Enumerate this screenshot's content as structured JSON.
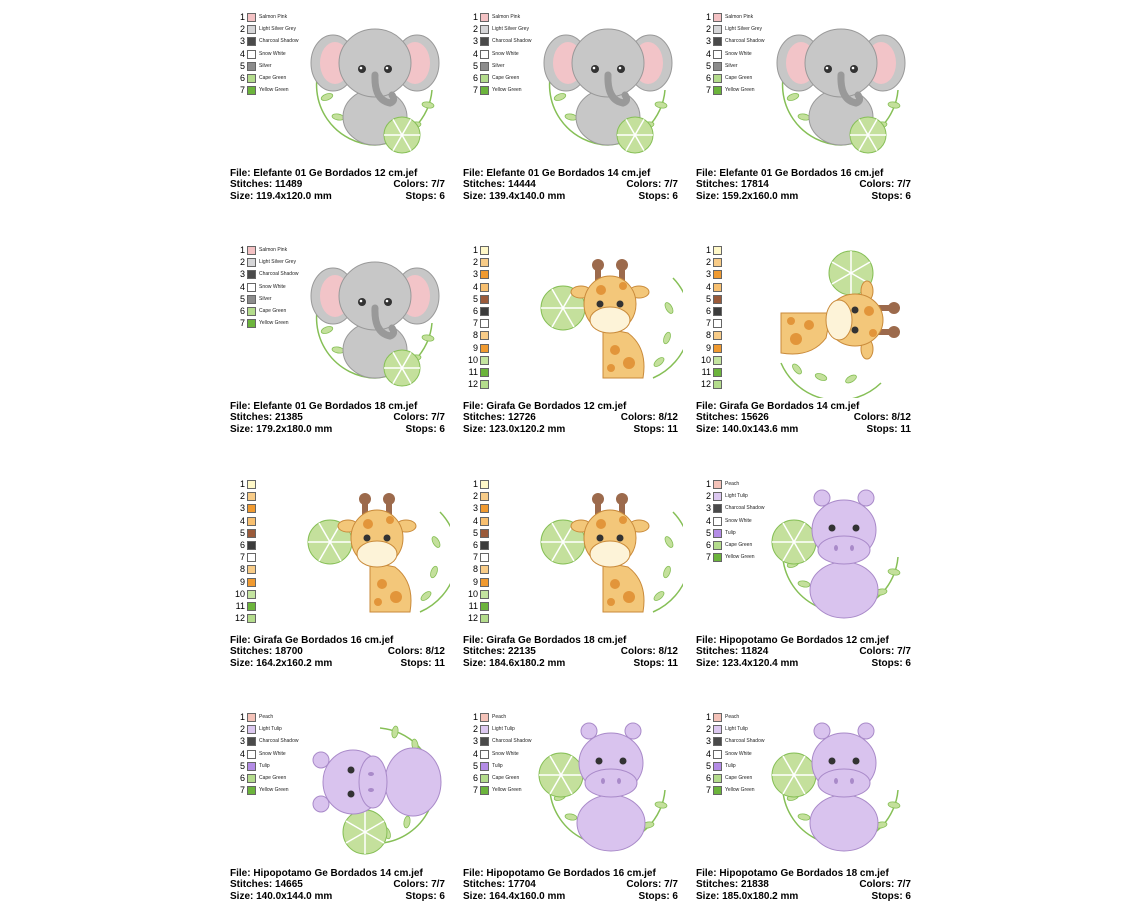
{
  "colors": {
    "leaf_light": "#c4e09c",
    "leaf_dark": "#86bf56",
    "elephant_body": "#c7c7c7",
    "elephant_ear_inner": "#f2c4c8",
    "giraffe_body": "#f3c77a",
    "giraffe_spot": "#e2953a",
    "giraffe_horn": "#9c6a4c",
    "hippo_body": "#d9c3ee",
    "hippo_outline": "#a98ac9"
  },
  "cards": [
    {
      "animal": "elephant",
      "file": "File: Elefante 01 Ge Bordados 12 cm.jef",
      "stitches": "Stitches: 11489",
      "colors": "Colors: 7/7",
      "size": "Size: 119.4x120.0 mm",
      "stops": "Stops: 6",
      "palette": [
        {
          "n": "1",
          "c": "#f4c2c4",
          "name": "Salmon Pink"
        },
        {
          "n": "2",
          "c": "#d6d6d8",
          "name": "Light Silver Grey"
        },
        {
          "n": "3",
          "c": "#4a4a4a",
          "name": "Charcoal Shadow"
        },
        {
          "n": "4",
          "c": "#ffffff",
          "name": "Snow White"
        },
        {
          "n": "5",
          "c": "#8c8c8c",
          "name": "Silver"
        },
        {
          "n": "6",
          "c": "#b4dc8c",
          "name": "Cape Green"
        },
        {
          "n": "7",
          "c": "#6cb43c",
          "name": "Yellow Green"
        }
      ]
    },
    {
      "animal": "elephant",
      "file": "File: Elefante 01 Ge Bordados 14 cm.jef",
      "stitches": "Stitches: 14444",
      "colors": "Colors: 7/7",
      "size": "Size: 139.4x140.0 mm",
      "stops": "Stops: 6",
      "palette": [
        {
          "n": "1",
          "c": "#f4c2c4",
          "name": "Salmon Pink"
        },
        {
          "n": "2",
          "c": "#d6d6d8",
          "name": "Light Silver Grey"
        },
        {
          "n": "3",
          "c": "#4a4a4a",
          "name": "Charcoal Shadow"
        },
        {
          "n": "4",
          "c": "#ffffff",
          "name": "Snow White"
        },
        {
          "n": "5",
          "c": "#8c8c8c",
          "name": "Silver"
        },
        {
          "n": "6",
          "c": "#b4dc8c",
          "name": "Cape Green"
        },
        {
          "n": "7",
          "c": "#6cb43c",
          "name": "Yellow Green"
        }
      ]
    },
    {
      "animal": "elephant",
      "file": "File: Elefante 01 Ge Bordados 16 cm.jef",
      "stitches": "Stitches: 17814",
      "colors": "Colors: 7/7",
      "size": "Size: 159.2x160.0 mm",
      "stops": "Stops: 6",
      "palette": [
        {
          "n": "1",
          "c": "#f4c2c4",
          "name": "Salmon Pink"
        },
        {
          "n": "2",
          "c": "#d6d6d8",
          "name": "Light Silver Grey"
        },
        {
          "n": "3",
          "c": "#4a4a4a",
          "name": "Charcoal Shadow"
        },
        {
          "n": "4",
          "c": "#ffffff",
          "name": "Snow White"
        },
        {
          "n": "5",
          "c": "#8c8c8c",
          "name": "Silver"
        },
        {
          "n": "6",
          "c": "#b4dc8c",
          "name": "Cape Green"
        },
        {
          "n": "7",
          "c": "#6cb43c",
          "name": "Yellow Green"
        }
      ]
    },
    {
      "animal": "elephant",
      "file": "File: Elefante 01 Ge Bordados 18 cm.jef",
      "stitches": "Stitches: 21385",
      "colors": "Colors: 7/7",
      "size": "Size: 179.2x180.0 mm",
      "stops": "Stops: 6",
      "palette": [
        {
          "n": "1",
          "c": "#f4c2c4",
          "name": "Salmon Pink"
        },
        {
          "n": "2",
          "c": "#d6d6d8",
          "name": "Light Silver Grey"
        },
        {
          "n": "3",
          "c": "#4a4a4a",
          "name": "Charcoal Shadow"
        },
        {
          "n": "4",
          "c": "#ffffff",
          "name": "Snow White"
        },
        {
          "n": "5",
          "c": "#8c8c8c",
          "name": "Silver"
        },
        {
          "n": "6",
          "c": "#b4dc8c",
          "name": "Cape Green"
        },
        {
          "n": "7",
          "c": "#6cb43c",
          "name": "Yellow Green"
        }
      ]
    },
    {
      "animal": "giraffe",
      "file": "File: Girafa Ge Bordados 12 cm.jef",
      "stitches": "Stitches: 12726",
      "colors": "Colors: 8/12",
      "size": "Size: 123.0x120.2 mm",
      "stops": "Stops: 11",
      "palette": [
        {
          "n": "1",
          "c": "#fff8c8",
          "name": ""
        },
        {
          "n": "2",
          "c": "#f8cc88",
          "name": ""
        },
        {
          "n": "3",
          "c": "#f09a30",
          "name": ""
        },
        {
          "n": "4",
          "c": "#f8c070",
          "name": ""
        },
        {
          "n": "5",
          "c": "#9a5a3a",
          "name": ""
        },
        {
          "n": "6",
          "c": "#3c3c3c",
          "name": ""
        },
        {
          "n": "7",
          "c": "#ffffff",
          "name": ""
        },
        {
          "n": "8",
          "c": "#f8cc88",
          "name": ""
        },
        {
          "n": "9",
          "c": "#f09a30",
          "name": ""
        },
        {
          "n": "10",
          "c": "#c4e4a0",
          "name": ""
        },
        {
          "n": "11",
          "c": "#6cb43c",
          "name": ""
        },
        {
          "n": "12",
          "c": "#b4dc8c",
          "name": ""
        }
      ]
    },
    {
      "animal": "giraffe",
      "file": "File: Girafa Ge Bordados 14 cm.jef",
      "stitches": "Stitches: 15626",
      "colors": "Colors: 8/12",
      "size": "Size: 140.0x143.6 mm",
      "stops": "Stops: 11",
      "palette": [
        {
          "n": "1",
          "c": "#fff8c8",
          "name": ""
        },
        {
          "n": "2",
          "c": "#f8cc88",
          "name": ""
        },
        {
          "n": "3",
          "c": "#f09a30",
          "name": ""
        },
        {
          "n": "4",
          "c": "#f8c070",
          "name": ""
        },
        {
          "n": "5",
          "c": "#9a5a3a",
          "name": ""
        },
        {
          "n": "6",
          "c": "#3c3c3c",
          "name": ""
        },
        {
          "n": "7",
          "c": "#ffffff",
          "name": ""
        },
        {
          "n": "8",
          "c": "#f8cc88",
          "name": ""
        },
        {
          "n": "9",
          "c": "#f09a30",
          "name": ""
        },
        {
          "n": "10",
          "c": "#c4e4a0",
          "name": ""
        },
        {
          "n": "11",
          "c": "#6cb43c",
          "name": ""
        },
        {
          "n": "12",
          "c": "#b4dc8c",
          "name": ""
        }
      ]
    },
    {
      "animal": "giraffe",
      "file": "File: Girafa Ge Bordados 16 cm.jef",
      "stitches": "Stitches: 18700",
      "colors": "Colors: 8/12",
      "size": "Size: 164.2x160.2 mm",
      "stops": "Stops: 11",
      "palette": [
        {
          "n": "1",
          "c": "#fff8c8",
          "name": ""
        },
        {
          "n": "2",
          "c": "#f8cc88",
          "name": ""
        },
        {
          "n": "3",
          "c": "#f09a30",
          "name": ""
        },
        {
          "n": "4",
          "c": "#f8c070",
          "name": ""
        },
        {
          "n": "5",
          "c": "#9a5a3a",
          "name": ""
        },
        {
          "n": "6",
          "c": "#3c3c3c",
          "name": ""
        },
        {
          "n": "7",
          "c": "#ffffff",
          "name": ""
        },
        {
          "n": "8",
          "c": "#f8cc88",
          "name": ""
        },
        {
          "n": "9",
          "c": "#f09a30",
          "name": ""
        },
        {
          "n": "10",
          "c": "#c4e4a0",
          "name": ""
        },
        {
          "n": "11",
          "c": "#6cb43c",
          "name": ""
        },
        {
          "n": "12",
          "c": "#b4dc8c",
          "name": ""
        }
      ]
    },
    {
      "animal": "giraffe",
      "file": "File: Girafa Ge Bordados 18 cm.jef",
      "stitches": "Stitches: 22135",
      "colors": "Colors: 8/12",
      "size": "Size: 184.6x180.2 mm",
      "stops": "Stops: 11",
      "palette": [
        {
          "n": "1",
          "c": "#fff8c8",
          "name": ""
        },
        {
          "n": "2",
          "c": "#f8cc88",
          "name": ""
        },
        {
          "n": "3",
          "c": "#f09a30",
          "name": ""
        },
        {
          "n": "4",
          "c": "#f8c070",
          "name": ""
        },
        {
          "n": "5",
          "c": "#9a5a3a",
          "name": ""
        },
        {
          "n": "6",
          "c": "#3c3c3c",
          "name": ""
        },
        {
          "n": "7",
          "c": "#ffffff",
          "name": ""
        },
        {
          "n": "8",
          "c": "#f8cc88",
          "name": ""
        },
        {
          "n": "9",
          "c": "#f09a30",
          "name": ""
        },
        {
          "n": "10",
          "c": "#c4e4a0",
          "name": ""
        },
        {
          "n": "11",
          "c": "#6cb43c",
          "name": ""
        },
        {
          "n": "12",
          "c": "#b4dc8c",
          "name": ""
        }
      ]
    },
    {
      "animal": "hippo",
      "file": "File: Hipopotamo Ge Bordados 12 cm.jef",
      "stitches": "Stitches: 11824",
      "colors": "Colors: 7/7",
      "size": "Size: 123.4x120.4 mm",
      "stops": "Stops: 6",
      "palette": [
        {
          "n": "1",
          "c": "#f4c2b8",
          "name": "Peach"
        },
        {
          "n": "2",
          "c": "#dcc8f0",
          "name": "Light Tulip"
        },
        {
          "n": "3",
          "c": "#4a4a4a",
          "name": "Charcoal Shadow"
        },
        {
          "n": "4",
          "c": "#ffffff",
          "name": "Snow White"
        },
        {
          "n": "5",
          "c": "#b48ce6",
          "name": "Tulip"
        },
        {
          "n": "6",
          "c": "#b4dc8c",
          "name": "Cape Green"
        },
        {
          "n": "7",
          "c": "#6cb43c",
          "name": "Yellow Green"
        }
      ]
    },
    {
      "animal": "hippo",
      "file": "File: Hipopotamo Ge Bordados 14 cm.jef",
      "stitches": "Stitches: 14665",
      "colors": "Colors: 7/7",
      "size": "Size: 140.0x144.0 mm",
      "stops": "Stops: 6",
      "palette": [
        {
          "n": "1",
          "c": "#f4c2b8",
          "name": "Peach"
        },
        {
          "n": "2",
          "c": "#dcc8f0",
          "name": "Light Tulip"
        },
        {
          "n": "3",
          "c": "#4a4a4a",
          "name": "Charcoal Shadow"
        },
        {
          "n": "4",
          "c": "#ffffff",
          "name": "Snow White"
        },
        {
          "n": "5",
          "c": "#b48ce6",
          "name": "Tulip"
        },
        {
          "n": "6",
          "c": "#b4dc8c",
          "name": "Cape Green"
        },
        {
          "n": "7",
          "c": "#6cb43c",
          "name": "Yellow Green"
        }
      ]
    },
    {
      "animal": "hippo",
      "file": "File: Hipopotamo Ge Bordados 16 cm.jef",
      "stitches": "Stitches: 17704",
      "colors": "Colors: 7/7",
      "size": "Size: 164.4x160.0 mm",
      "stops": "Stops: 6",
      "palette": [
        {
          "n": "1",
          "c": "#f4c2b8",
          "name": "Peach"
        },
        {
          "n": "2",
          "c": "#dcc8f0",
          "name": "Light Tulip"
        },
        {
          "n": "3",
          "c": "#4a4a4a",
          "name": "Charcoal Shadow"
        },
        {
          "n": "4",
          "c": "#ffffff",
          "name": "Snow White"
        },
        {
          "n": "5",
          "c": "#b48ce6",
          "name": "Tulip"
        },
        {
          "n": "6",
          "c": "#b4dc8c",
          "name": "Cape Green"
        },
        {
          "n": "7",
          "c": "#6cb43c",
          "name": "Yellow Green"
        }
      ]
    },
    {
      "animal": "hippo",
      "file": "File: Hipopotamo Ge Bordados 18 cm.jef",
      "stitches": "Stitches: 21838",
      "colors": "Colors: 7/7",
      "size": "Size: 185.0x180.2 mm",
      "stops": "Stops: 6",
      "palette": [
        {
          "n": "1",
          "c": "#f4c2b8",
          "name": "Peach"
        },
        {
          "n": "2",
          "c": "#dcc8f0",
          "name": "Light Tulip"
        },
        {
          "n": "3",
          "c": "#4a4a4a",
          "name": "Charcoal Shadow"
        },
        {
          "n": "4",
          "c": "#ffffff",
          "name": "Snow White"
        },
        {
          "n": "5",
          "c": "#b48ce6",
          "name": "Tulip"
        },
        {
          "n": "6",
          "c": "#b4dc8c",
          "name": "Cape Green"
        },
        {
          "n": "7",
          "c": "#6cb43c",
          "name": "Yellow Green"
        }
      ]
    }
  ]
}
